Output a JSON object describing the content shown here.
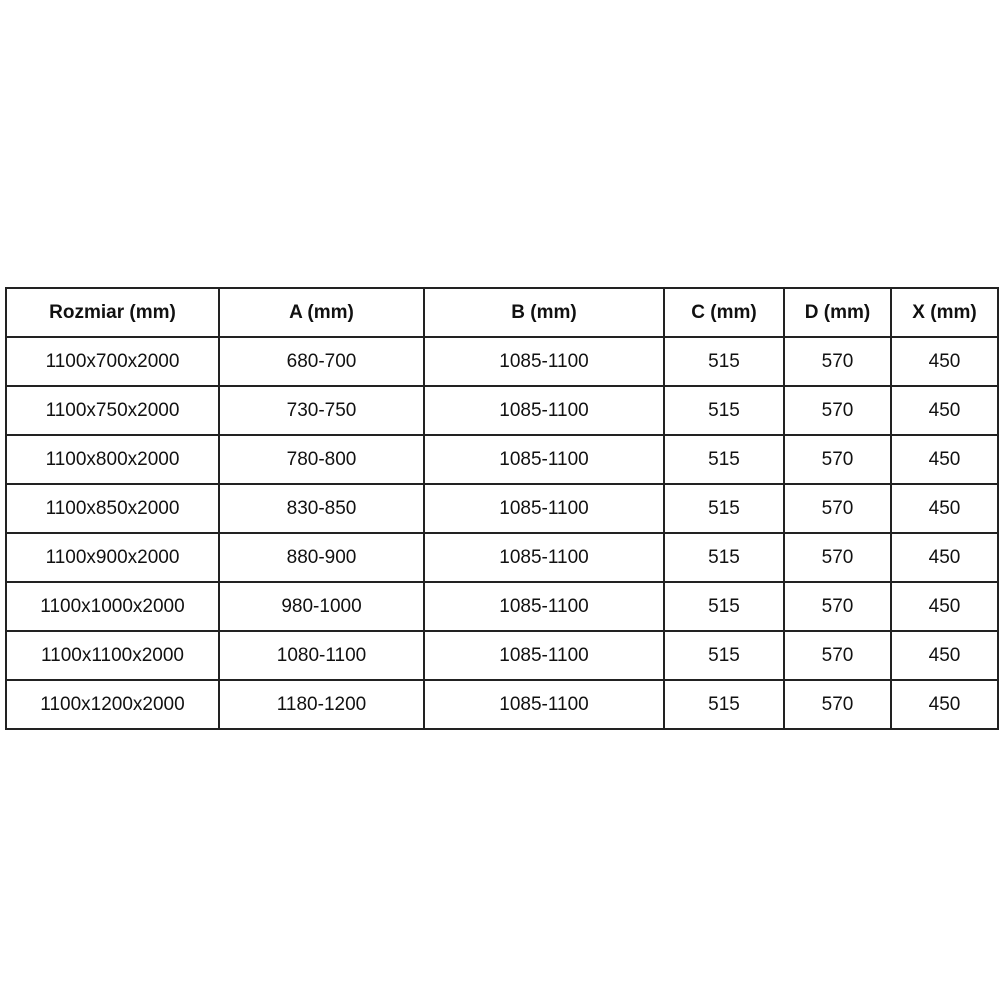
{
  "table": {
    "headers": [
      "Rozmiar (mm)",
      "A (mm)",
      "B (mm)",
      "C (mm)",
      "D (mm)",
      "X (mm)"
    ],
    "rows": [
      [
        "1100x700x2000",
        "680-700",
        "1085-1100",
        "515",
        "570",
        "450"
      ],
      [
        "1100x750x2000",
        "730-750",
        "1085-1100",
        "515",
        "570",
        "450"
      ],
      [
        "1100x800x2000",
        "780-800",
        "1085-1100",
        "515",
        "570",
        "450"
      ],
      [
        "1100x850x2000",
        "830-850",
        "1085-1100",
        "515",
        "570",
        "450"
      ],
      [
        "1100x900x2000",
        "880-900",
        "1085-1100",
        "515",
        "570",
        "450"
      ],
      [
        "1100x1000x2000",
        "980-1000",
        "1085-1100",
        "515",
        "570",
        "450"
      ],
      [
        "1100x1100x2000",
        "1080-1100",
        "1085-1100",
        "515",
        "570",
        "450"
      ],
      [
        "1100x1200x2000",
        "1180-1200",
        "1085-1100",
        "515",
        "570",
        "450"
      ]
    ]
  }
}
